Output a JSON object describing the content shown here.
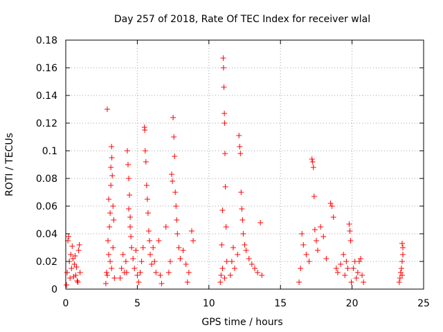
{
  "chart_data": {
    "type": "scatter",
    "title": "Day 257 of 2018, Rate Of TEC Index for receiver wlal",
    "xlabel": "GPS time / hours",
    "ylabel": "ROTI / TECUs",
    "xlim": [
      0,
      25
    ],
    "ylim": [
      0,
      0.18
    ],
    "xticks": [
      0,
      5,
      10,
      15,
      20,
      25
    ],
    "xtick_labels": [
      "0",
      "5",
      "10",
      "15",
      "20",
      "25"
    ],
    "yticks": [
      0,
      0.02,
      0.04,
      0.06,
      0.08,
      0.1,
      0.12,
      0.14,
      0.16,
      0.18
    ],
    "ytick_labels": [
      "0",
      "0.02",
      "0.04",
      "0.06",
      "0.08",
      "0.1",
      "0.12",
      "0.14",
      "0.16",
      "0.18"
    ],
    "grid": true,
    "marker": "+",
    "color": "#ff0000",
    "series": [
      {
        "name": "ROTI",
        "points": [
          [
            0.05,
            0.003
          ],
          [
            0.1,
            0.012
          ],
          [
            0.15,
            0.035
          ],
          [
            0.2,
            0.038
          ],
          [
            0.25,
            0.02
          ],
          [
            0.3,
            0.008
          ],
          [
            0.35,
            0.025
          ],
          [
            0.4,
            0.015
          ],
          [
            0.5,
            0.022
          ],
          [
            0.6,
            0.018
          ],
          [
            0.7,
            0.01
          ],
          [
            0.8,
            0.006
          ],
          [
            0.9,
            0.028
          ],
          [
            0.95,
            0.032
          ],
          [
            1.0,
            0.012
          ],
          [
            0.45,
            0.031
          ],
          [
            0.55,
            0.009
          ],
          [
            0.65,
            0.024
          ],
          [
            0.75,
            0.016
          ],
          [
            0.85,
            0.005
          ],
          [
            2.8,
            0.004
          ],
          [
            2.85,
            0.012
          ],
          [
            2.9,
            0.13
          ],
          [
            2.95,
            0.035
          ],
          [
            3.0,
            0.065
          ],
          [
            3.05,
            0.045
          ],
          [
            3.1,
            0.055
          ],
          [
            3.15,
            0.088
          ],
          [
            3.2,
            0.103
          ],
          [
            3.22,
            0.095
          ],
          [
            3.25,
            0.082
          ],
          [
            3.3,
            0.06
          ],
          [
            3.35,
            0.05
          ],
          [
            3.1,
            0.02
          ],
          [
            3.2,
            0.015
          ],
          [
            3.3,
            0.03
          ],
          [
            3.0,
            0.025
          ],
          [
            2.9,
            0.01
          ],
          [
            3.4,
            0.008
          ],
          [
            3.15,
            0.075
          ],
          [
            3.8,
            0.008
          ],
          [
            3.9,
            0.015
          ],
          [
            4.0,
            0.025
          ],
          [
            4.1,
            0.012
          ],
          [
            4.2,
            0.02
          ],
          [
            4.3,
            0.1
          ],
          [
            4.35,
            0.09
          ],
          [
            4.4,
            0.08
          ],
          [
            4.45,
            0.068
          ],
          [
            4.5,
            0.045
          ],
          [
            4.55,
            0.038
          ],
          [
            4.6,
            0.03
          ],
          [
            4.7,
            0.022
          ],
          [
            4.8,
            0.015
          ],
          [
            4.9,
            0.028
          ],
          [
            5.0,
            0.01
          ],
          [
            5.1,
            0.005
          ],
          [
            4.4,
            0.058
          ],
          [
            4.5,
            0.052
          ],
          [
            4.25,
            0.012
          ],
          [
            5.2,
            0.012
          ],
          [
            5.3,
            0.02
          ],
          [
            5.4,
            0.03
          ],
          [
            5.5,
            0.117
          ],
          [
            5.52,
            0.115
          ],
          [
            5.55,
            0.1
          ],
          [
            5.6,
            0.092
          ],
          [
            5.65,
            0.075
          ],
          [
            5.7,
            0.065
          ],
          [
            5.75,
            0.055
          ],
          [
            5.8,
            0.042
          ],
          [
            5.85,
            0.035
          ],
          [
            5.9,
            0.025
          ],
          [
            6.0,
            0.018
          ],
          [
            6.1,
            0.03
          ],
          [
            6.2,
            0.02
          ],
          [
            6.3,
            0.012
          ],
          [
            6.5,
            0.035
          ],
          [
            6.6,
            0.01
          ],
          [
            6.7,
            0.004
          ],
          [
            7.0,
            0.045
          ],
          [
            7.2,
            0.012
          ],
          [
            7.3,
            0.02
          ],
          [
            7.4,
            0.083
          ],
          [
            7.45,
            0.078
          ],
          [
            7.5,
            0.124
          ],
          [
            7.55,
            0.11
          ],
          [
            7.6,
            0.096
          ],
          [
            7.65,
            0.07
          ],
          [
            7.7,
            0.06
          ],
          [
            7.75,
            0.05
          ],
          [
            7.8,
            0.04
          ],
          [
            7.9,
            0.03
          ],
          [
            8.0,
            0.022
          ],
          [
            8.2,
            0.028
          ],
          [
            8.4,
            0.018
          ],
          [
            8.6,
            0.012
          ],
          [
            8.8,
            0.042
          ],
          [
            8.9,
            0.035
          ],
          [
            8.5,
            0.005
          ],
          [
            10.8,
            0.005
          ],
          [
            10.85,
            0.01
          ],
          [
            10.9,
            0.032
          ],
          [
            10.95,
            0.057
          ],
          [
            11.0,
            0.167
          ],
          [
            11.02,
            0.16
          ],
          [
            11.05,
            0.146
          ],
          [
            11.08,
            0.127
          ],
          [
            11.1,
            0.12
          ],
          [
            11.12,
            0.098
          ],
          [
            11.15,
            0.074
          ],
          [
            11.2,
            0.045
          ],
          [
            11.25,
            0.02
          ],
          [
            11.1,
            0.008
          ],
          [
            10.95,
            0.015
          ],
          [
            11.5,
            0.01
          ],
          [
            11.6,
            0.02
          ],
          [
            11.7,
            0.03
          ],
          [
            11.8,
            0.015
          ],
          [
            12.0,
            0.025
          ],
          [
            12.1,
            0.111
          ],
          [
            12.15,
            0.103
          ],
          [
            12.2,
            0.098
          ],
          [
            12.25,
            0.07
          ],
          [
            12.3,
            0.058
          ],
          [
            12.35,
            0.05
          ],
          [
            12.4,
            0.04
          ],
          [
            12.5,
            0.032
          ],
          [
            12.6,
            0.028
          ],
          [
            12.8,
            0.022
          ],
          [
            13.0,
            0.018
          ],
          [
            13.2,
            0.015
          ],
          [
            13.4,
            0.012
          ],
          [
            13.6,
            0.048
          ],
          [
            13.7,
            0.01
          ],
          [
            16.3,
            0.005
          ],
          [
            16.4,
            0.015
          ],
          [
            16.5,
            0.04
          ],
          [
            16.6,
            0.032
          ],
          [
            16.8,
            0.025
          ],
          [
            17.0,
            0.02
          ],
          [
            17.2,
            0.094
          ],
          [
            17.25,
            0.092
          ],
          [
            17.3,
            0.088
          ],
          [
            17.35,
            0.067
          ],
          [
            17.4,
            0.043
          ],
          [
            17.5,
            0.035
          ],
          [
            17.6,
            0.028
          ],
          [
            17.8,
            0.045
          ],
          [
            18.0,
            0.038
          ],
          [
            18.2,
            0.022
          ],
          [
            18.5,
            0.062
          ],
          [
            18.6,
            0.06
          ],
          [
            18.7,
            0.052
          ],
          [
            18.9,
            0.015
          ],
          [
            19.0,
            0.012
          ],
          [
            19.2,
            0.018
          ],
          [
            19.4,
            0.025
          ],
          [
            19.5,
            0.01
          ],
          [
            19.6,
            0.02
          ],
          [
            19.7,
            0.015
          ],
          [
            19.8,
            0.047
          ],
          [
            19.85,
            0.042
          ],
          [
            19.9,
            0.035
          ],
          [
            19.95,
            0.005
          ],
          [
            20.1,
            0.015
          ],
          [
            20.2,
            0.02
          ],
          [
            20.3,
            0.008
          ],
          [
            20.4,
            0.012
          ],
          [
            20.5,
            0.02
          ],
          [
            20.6,
            0.022
          ],
          [
            20.7,
            0.01
          ],
          [
            20.8,
            0.005
          ],
          [
            23.3,
            0.005
          ],
          [
            23.35,
            0.008
          ],
          [
            23.4,
            0.012
          ],
          [
            23.45,
            0.015
          ],
          [
            23.5,
            0.02
          ],
          [
            23.5,
            0.033
          ],
          [
            23.55,
            0.03
          ],
          [
            23.55,
            0.025
          ],
          [
            23.5,
            0.01
          ]
        ]
      }
    ]
  }
}
